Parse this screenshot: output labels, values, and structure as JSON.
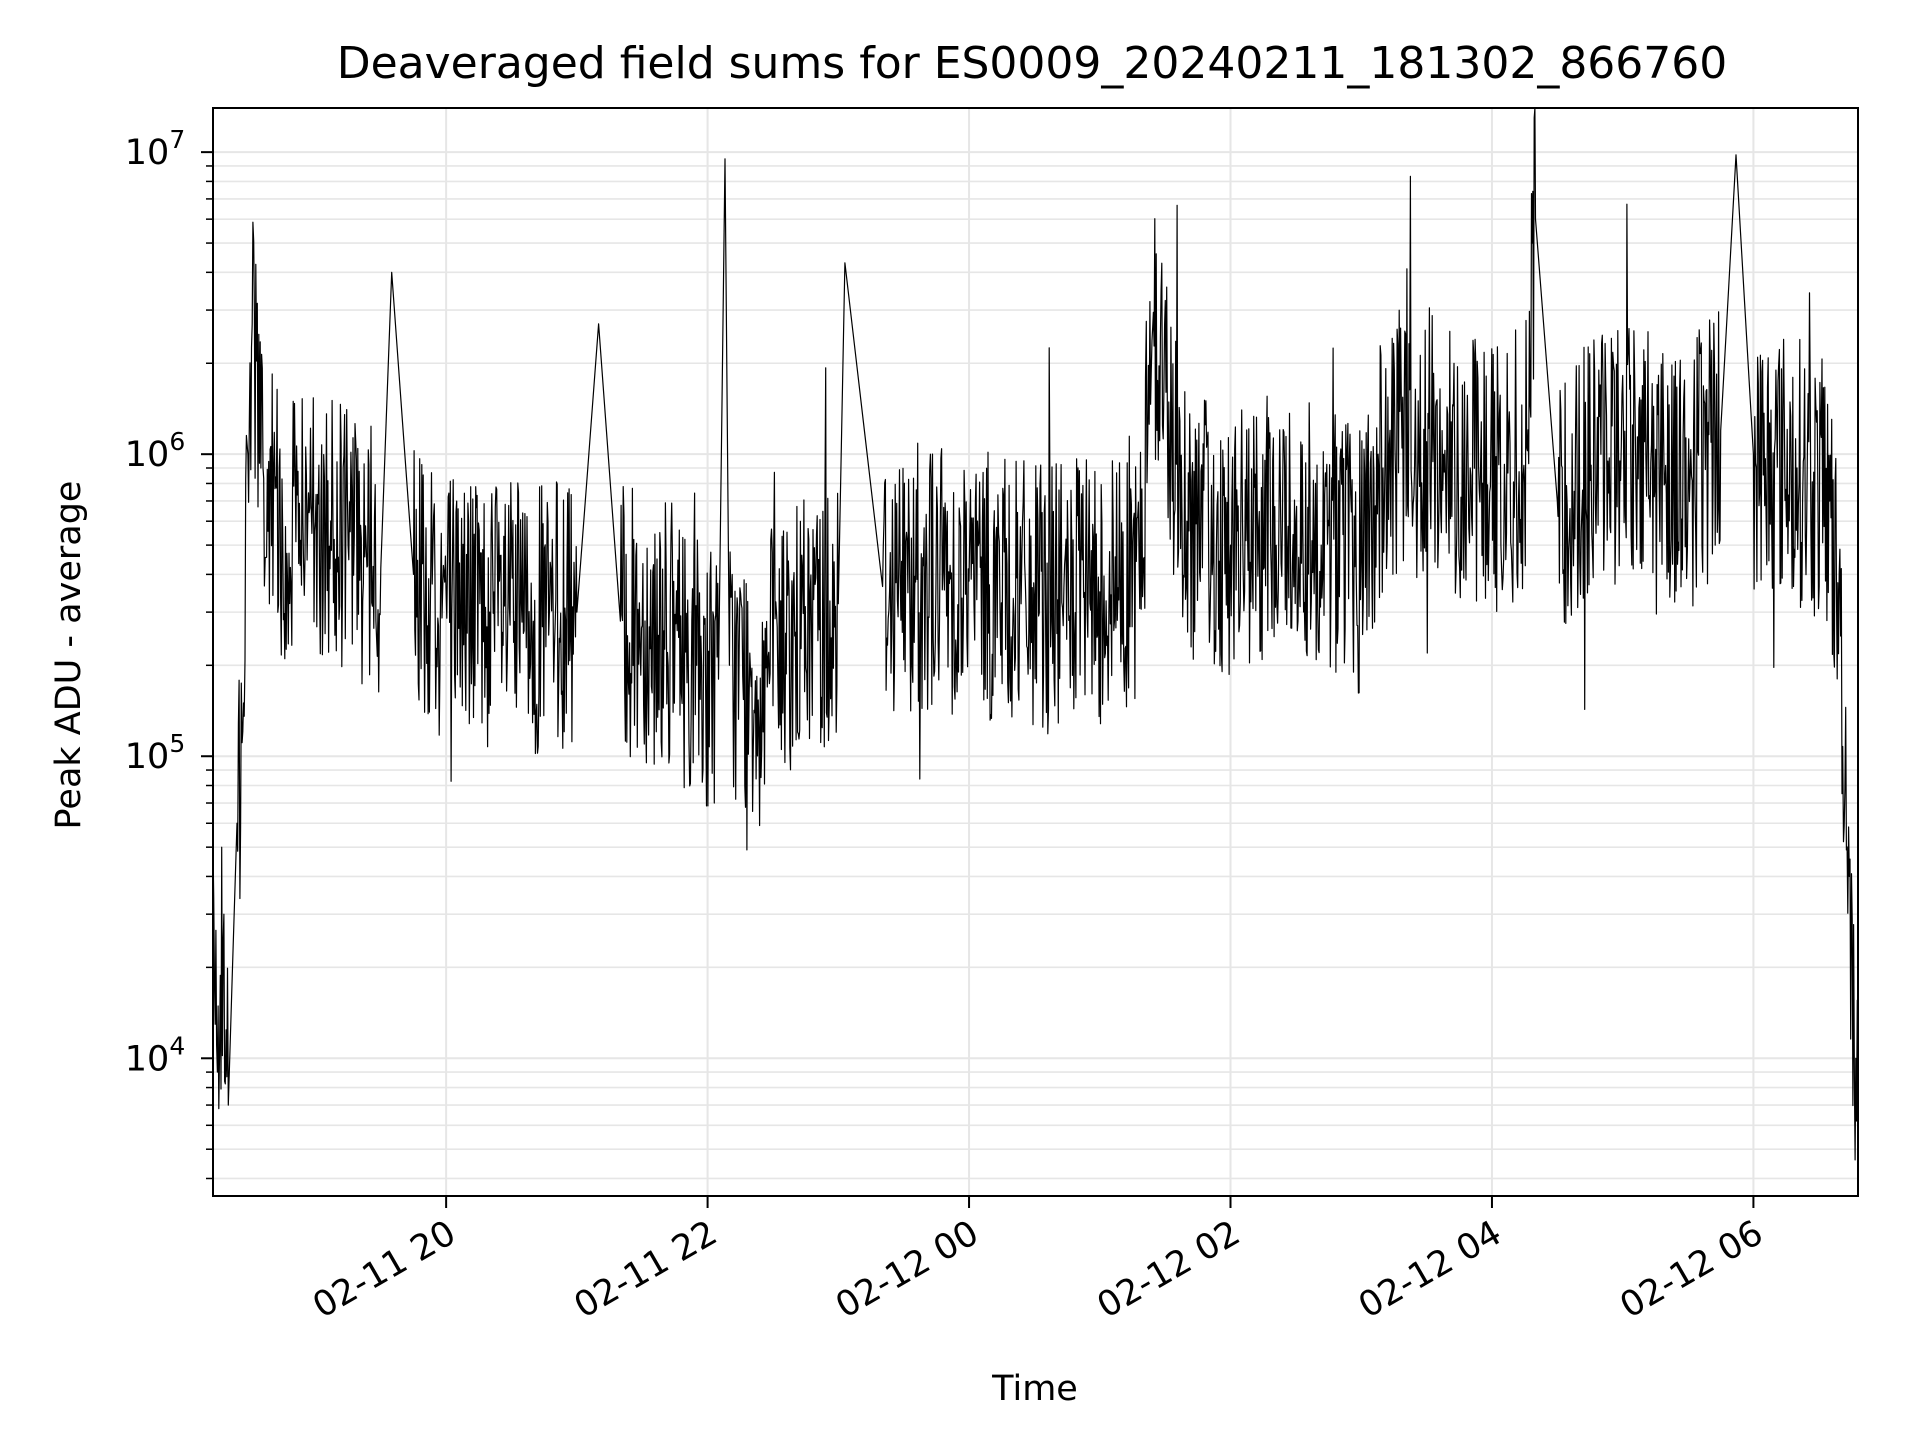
{
  "chart_data": {
    "type": "line",
    "title": "Deaveraged field sums for ES0009_20240211_181302_866760",
    "xlabel": "Time",
    "ylabel": "Peak ADU - average",
    "yscale": "log",
    "xlim": [
      "2024-02-11 18:13",
      "2024-02-12 06:48"
    ],
    "ylim": [
      3500,
      14000000
    ],
    "grid": true,
    "line_color": "#000000",
    "grid_color": "#e6e6e6",
    "x_ticks": [
      {
        "value": "2024-02-11 20:00",
        "label": "02-11 20"
      },
      {
        "value": "2024-02-11 22:00",
        "label": "02-11 22"
      },
      {
        "value": "2024-02-12 00:00",
        "label": "02-12 00"
      },
      {
        "value": "2024-02-12 02:00",
        "label": "02-12 02"
      },
      {
        "value": "2024-02-12 04:00",
        "label": "02-12 04"
      },
      {
        "value": "2024-02-12 06:00",
        "label": "02-12 06"
      }
    ],
    "y_ticks": [
      {
        "value": 10000,
        "base": "10",
        "exp": "4"
      },
      {
        "value": 100000,
        "base": "10",
        "exp": "5"
      },
      {
        "value": 1000000,
        "base": "10",
        "exp": "6"
      },
      {
        "value": 10000000,
        "base": "10",
        "exp": "7"
      }
    ],
    "series": [
      {
        "points": [
          [
            "2024-02-11 18:13",
            50000
          ],
          [
            "2024-02-11 18:15",
            9000
          ],
          [
            "2024-02-11 18:18",
            30000
          ],
          [
            "2024-02-11 18:20",
            7000
          ],
          [
            "2024-02-11 18:24",
            60000
          ],
          [
            "2024-02-11 18:27",
            150000
          ],
          [
            "2024-02-11 18:29",
            1000000
          ],
          [
            "2024-02-11 18:31",
            2700000
          ],
          [
            "2024-02-11 18:35",
            900000
          ],
          [
            "2024-02-11 18:45",
            550000
          ],
          [
            "2024-02-11 19:00",
            600000
          ],
          [
            "2024-02-11 19:15",
            500000
          ],
          [
            "2024-02-11 19:30",
            420000
          ],
          [
            "2024-02-11 19:35",
            4000000
          ],
          [
            "2024-02-11 19:45",
            400000
          ],
          [
            "2024-02-11 20:00",
            350000
          ],
          [
            "2024-02-11 20:20",
            300000
          ],
          [
            "2024-02-11 20:40",
            280000
          ],
          [
            "2024-02-11 21:00",
            300000
          ],
          [
            "2024-02-11 21:10",
            2700000
          ],
          [
            "2024-02-11 21:20",
            280000
          ],
          [
            "2024-02-11 21:40",
            260000
          ],
          [
            "2024-02-11 21:55",
            200000
          ],
          [
            "2024-02-11 22:05",
            180000
          ],
          [
            "2024-02-11 22:08",
            9500000
          ],
          [
            "2024-02-11 22:10",
            200000
          ],
          [
            "2024-02-11 22:20",
            170000
          ],
          [
            "2024-02-11 22:40",
            250000
          ],
          [
            "2024-02-11 23:00",
            320000
          ],
          [
            "2024-02-11 23:03",
            4300000
          ],
          [
            "2024-02-11 23:20",
            380000
          ],
          [
            "2024-02-11 23:40",
            400000
          ],
          [
            "2024-02-12 00:00",
            380000
          ],
          [
            "2024-02-12 00:30",
            330000
          ],
          [
            "2024-02-12 01:00",
            350000
          ],
          [
            "2024-02-12 01:20",
            450000
          ],
          [
            "2024-02-12 01:23",
            3200000
          ],
          [
            "2024-02-12 01:40",
            600000
          ],
          [
            "2024-02-12 02:00",
            500000
          ],
          [
            "2024-02-12 02:30",
            600000
          ],
          [
            "2024-02-12 03:00",
            450000
          ],
          [
            "2024-02-12 03:10",
            900000
          ],
          [
            "2024-02-12 03:30",
            1100000
          ],
          [
            "2024-02-12 03:50",
            900000
          ],
          [
            "2024-02-12 04:15",
            800000
          ],
          [
            "2024-02-12 04:20",
            6000000
          ],
          [
            "2024-02-12 04:30",
            700000
          ],
          [
            "2024-02-12 04:50",
            1000000
          ],
          [
            "2024-02-12 05:10",
            1100000
          ],
          [
            "2024-02-12 05:30",
            800000
          ],
          [
            "2024-02-12 05:45",
            1200000
          ],
          [
            "2024-02-12 05:52",
            9800000
          ],
          [
            "2024-02-12 06:00",
            1000000
          ],
          [
            "2024-02-12 06:20",
            900000
          ],
          [
            "2024-02-12 06:35",
            700000
          ],
          [
            "2024-02-12 06:40",
            250000
          ],
          [
            "2024-02-12 06:44",
            40000
          ],
          [
            "2024-02-12 06:47",
            10000
          ],
          [
            "2024-02-12 06:48",
            5000
          ]
        ]
      }
    ]
  }
}
